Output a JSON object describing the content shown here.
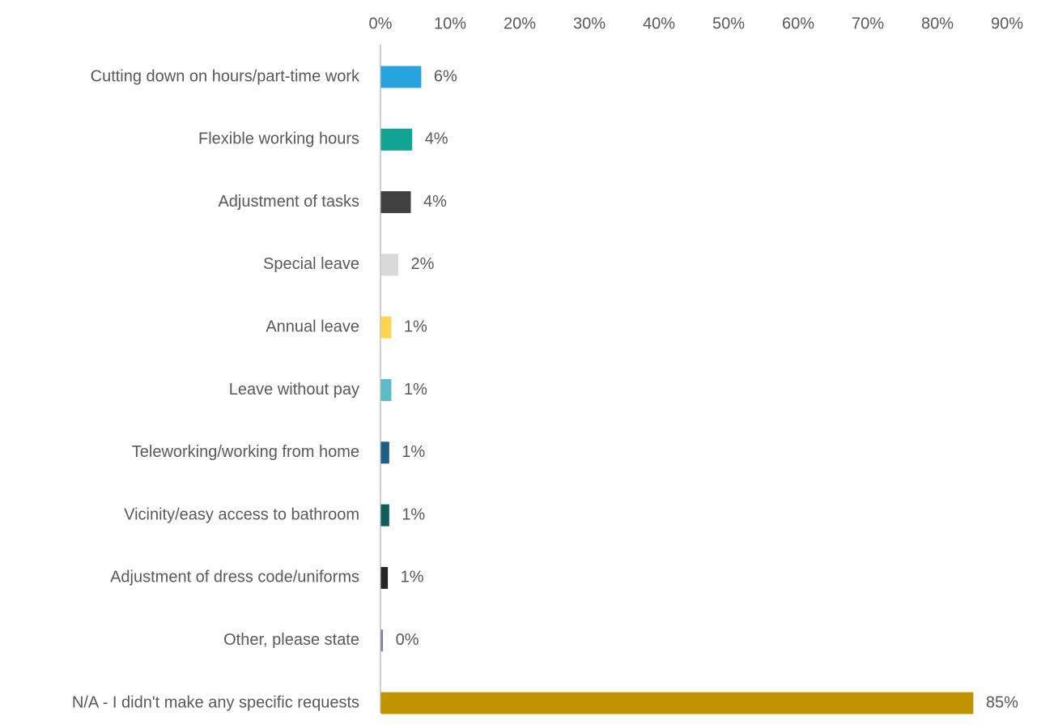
{
  "chart_data": {
    "type": "bar",
    "orientation": "horizontal",
    "title": "",
    "xlabel": "",
    "ylabel": "",
    "x_axis_position": "top",
    "xlim": [
      0,
      90
    ],
    "x_ticks": [
      0,
      10,
      20,
      30,
      40,
      50,
      60,
      70,
      80,
      90
    ],
    "x_tick_labels": [
      "0%",
      "10%",
      "20%",
      "30%",
      "40%",
      "50%",
      "60%",
      "70%",
      "80%",
      "90%"
    ],
    "grid": false,
    "legend": "none",
    "categories": [
      "Cutting down on hours/part-time work",
      "Flexible working hours",
      "Adjustment of tasks",
      "Special leave",
      "Annual leave",
      "Leave without pay",
      "Teleworking/working from home",
      "Vicinity/easy access to bathroom",
      "Adjustment of dress code/uniforms",
      "Other, please state",
      "N/A - I didn't make any specific requests"
    ],
    "values": [
      5.8,
      4.5,
      4.3,
      2.5,
      1.5,
      1.5,
      1.2,
      1.2,
      1.0,
      0.3,
      85.1
    ],
    "value_labels": [
      "6%",
      "4%",
      "4%",
      "2%",
      "1%",
      "1%",
      "1%",
      "1%",
      "1%",
      "0%",
      "85%"
    ],
    "colors": [
      "#29A3DE",
      "#12A596",
      "#404040",
      "#D9D9D9",
      "#FFD54F",
      "#5BBCC4",
      "#1F5F84",
      "#0D5E58",
      "#262626",
      "#7F7F9F",
      "#C09300"
    ]
  }
}
